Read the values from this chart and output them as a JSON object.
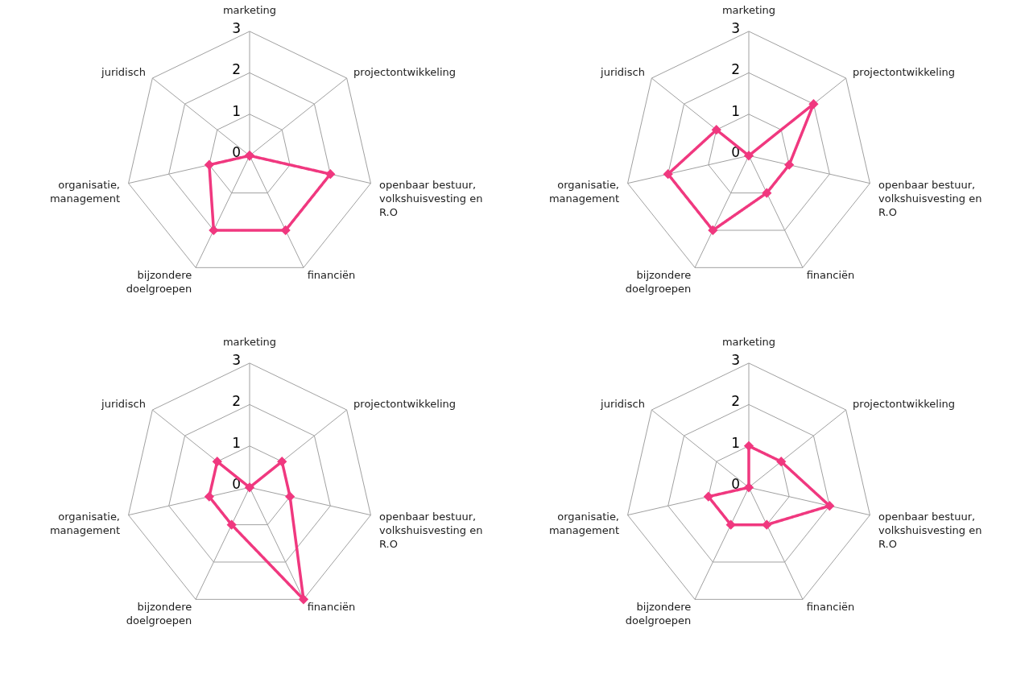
{
  "chart_data": [
    {
      "type": "radar",
      "categories": [
        "marketing",
        "projectontwikkeling",
        "openbaar bestuur, volkshuisvesting en R.O",
        "financiën",
        "bijzondere doelgroepen",
        "organisatie, management",
        "juridisch"
      ],
      "ylim": [
        0,
        3
      ],
      "yticks": [
        0,
        1,
        2,
        3
      ],
      "grid": true,
      "marker": "diamond",
      "line_style": "solid",
      "series": [
        {
          "color": "#f0387f",
          "values": [
            0,
            0,
            2,
            2,
            2,
            1,
            0
          ]
        }
      ]
    },
    {
      "type": "radar",
      "categories": [
        "marketing",
        "projectontwikkeling",
        "openbaar bestuur, volkshuisvesting en R.O",
        "financiën",
        "bijzondere doelgroepen",
        "organisatie, management",
        "juridisch"
      ],
      "ylim": [
        0,
        3
      ],
      "yticks": [
        0,
        1,
        2,
        3
      ],
      "grid": true,
      "marker": "diamond",
      "line_style": "solid",
      "series": [
        {
          "color": "#f0387f",
          "values": [
            0,
            2,
            1,
            1,
            2,
            2,
            1
          ]
        }
      ]
    },
    {
      "type": "radar",
      "categories": [
        "marketing",
        "projectontwikkeling",
        "openbaar bestuur, volkshuisvesting en R.O",
        "financiën",
        "bijzondere doelgroepen",
        "organisatie, management",
        "juridisch"
      ],
      "ylim": [
        0,
        3
      ],
      "yticks": [
        0,
        1,
        2,
        3
      ],
      "grid": true,
      "marker": "diamond",
      "line_style": "solid",
      "series": [
        {
          "color": "#f0387f",
          "values": [
            0,
            1,
            1,
            3,
            1,
            1,
            1
          ]
        }
      ]
    },
    {
      "type": "radar",
      "categories": [
        "marketing",
        "projectontwikkeling",
        "openbaar bestuur, volkshuisvesting en R.O",
        "financiën",
        "bijzondere doelgroepen",
        "organisatie, management",
        "juridisch"
      ],
      "ylim": [
        0,
        3
      ],
      "yticks": [
        0,
        1,
        2,
        3
      ],
      "grid": true,
      "marker": "diamond",
      "line_style": "solid",
      "series": [
        {
          "color": "#f0387f",
          "values": [
            1,
            1,
            2,
            1,
            1,
            1,
            0
          ]
        }
      ]
    }
  ]
}
